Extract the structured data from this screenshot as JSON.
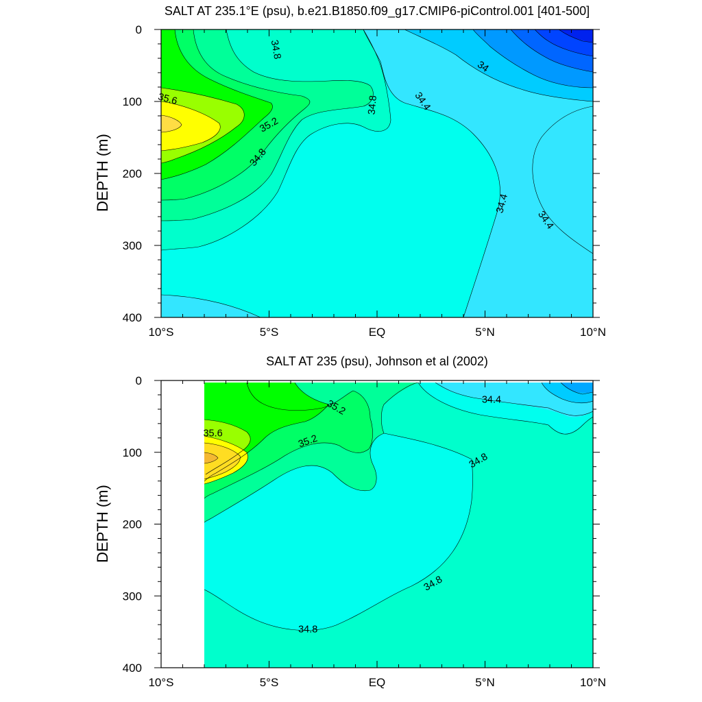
{
  "chart_data": [
    {
      "type": "contour",
      "title": "SALT AT 235.1°E (psu), b.e21.B1850.f09_g17.CMIP6-piControl.001 [401-500]",
      "ylabel": "DEPTH (m)",
      "xlabel": "",
      "xlim": [
        -10,
        10
      ],
      "ylim": [
        0,
        400
      ],
      "y_inverted": true,
      "x_ticks": [
        -10,
        -5,
        0,
        5,
        10
      ],
      "x_tick_labels": [
        "10°S",
        "5°S",
        "EQ",
        "5°N",
        "10°N"
      ],
      "y_ticks": [
        0,
        100,
        200,
        300,
        400
      ],
      "y_tick_labels": [
        "0",
        "100",
        "200",
        "300",
        "400"
      ],
      "contour_interval": 0.2,
      "contour_labels": [
        {
          "text": "34.8",
          "x": -4.7,
          "y": 28,
          "angle": 80
        },
        {
          "text": "35.6",
          "x": -9.7,
          "y": 97,
          "angle": 15
        },
        {
          "text": "35.2",
          "x": -5.0,
          "y": 133,
          "angle": -30
        },
        {
          "text": "34.8",
          "x": -0.2,
          "y": 105,
          "angle": -85
        },
        {
          "text": "34.8",
          "x": -5.5,
          "y": 178,
          "angle": -50
        },
        {
          "text": "34",
          "x": 4.9,
          "y": 52,
          "angle": 35
        },
        {
          "text": "34.4",
          "x": 2.1,
          "y": 100,
          "angle": 55
        },
        {
          "text": "34.4",
          "x": 5.8,
          "y": 242,
          "angle": -75
        },
        {
          "text": "34.4",
          "x": 7.8,
          "y": 265,
          "angle": 55
        }
      ]
    },
    {
      "type": "contour",
      "title": "SALT AT 235 (psu), Johnson et al (2002)",
      "ylabel": "DEPTH (m)",
      "xlabel": "",
      "xlim": [
        -10,
        10
      ],
      "ylim": [
        0,
        400
      ],
      "y_inverted": true,
      "x_ticks": [
        -10,
        -5,
        0,
        5,
        10
      ],
      "x_tick_labels": [
        "10°S",
        "5°S",
        "EQ",
        "5°N",
        "10°N"
      ],
      "y_ticks": [
        0,
        100,
        200,
        300,
        400
      ],
      "y_tick_labels": [
        "0",
        "100",
        "200",
        "300",
        "400"
      ],
      "data_xlim": [
        -8,
        10
      ],
      "contour_interval": 0.2,
      "contour_labels": [
        {
          "text": "35.2",
          "x": -1.9,
          "y": 38,
          "angle": 30
        },
        {
          "text": "35.6",
          "x": -7.6,
          "y": 74,
          "angle": 0
        },
        {
          "text": "35.2",
          "x": -3.2,
          "y": 85,
          "angle": -20
        },
        {
          "text": "34.4",
          "x": 5.3,
          "y": 27,
          "angle": 0
        },
        {
          "text": "34.8",
          "x": 4.7,
          "y": 112,
          "angle": -30
        },
        {
          "text": "34.8",
          "x": 2.6,
          "y": 283,
          "angle": -30
        },
        {
          "text": "34.8",
          "x": -3.2,
          "y": 347,
          "angle": 0
        }
      ]
    }
  ],
  "colors": {
    "deep_blue": "#0033ff",
    "blue": "#0066ff",
    "mid_blue": "#0099ff",
    "light_blue": "#00ccff",
    "cyan_blue": "#33e6ff",
    "cyan": "#00ffee",
    "aqua_green": "#00ffcc",
    "sea_green": "#00ff99",
    "spring_green": "#00ff66",
    "green": "#00ff00",
    "lime": "#99ff00",
    "yellow": "#ffff00",
    "gold": "#ffdd22"
  }
}
